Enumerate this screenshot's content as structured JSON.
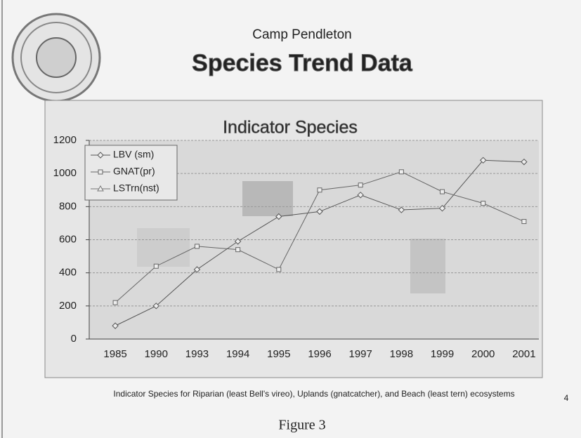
{
  "header": {
    "subtitle": "Camp Pendleton",
    "title": "Species Trend Data"
  },
  "chart_data": {
    "type": "line",
    "title": "Indicator Species",
    "categories": [
      "1985",
      "1990",
      "1993",
      "1994",
      "1995",
      "1996",
      "1997",
      "1998",
      "1999",
      "2000",
      "2001"
    ],
    "series": [
      {
        "name": "LBV (sm)",
        "color": "#555555",
        "marker": "diamond",
        "values": [
          80,
          200,
          420,
          590,
          740,
          770,
          870,
          780,
          790,
          1080,
          1070
        ]
      },
      {
        "name": "GNAT(pr)",
        "color": "#666666",
        "marker": "square",
        "values": [
          220,
          440,
          560,
          540,
          420,
          900,
          930,
          1010,
          890,
          820,
          710
        ]
      },
      {
        "name": "LSTrn(nst)",
        "color": "#777777",
        "marker": "triangle",
        "values": [
          null,
          null,
          null,
          null,
          null,
          null,
          null,
          null,
          null,
          null,
          null
        ]
      }
    ],
    "ylim": [
      0,
      1200
    ],
    "yticks": [
      0,
      200,
      400,
      600,
      800,
      1000,
      1200
    ],
    "grid": true,
    "legend": "top-left"
  },
  "caption": "Indicator Species for Riparian (least Bell's vireo), Uplands (gnatcatcher), and Beach (least tern) ecosystems",
  "figure_label": "Figure 3",
  "page_number": "4"
}
